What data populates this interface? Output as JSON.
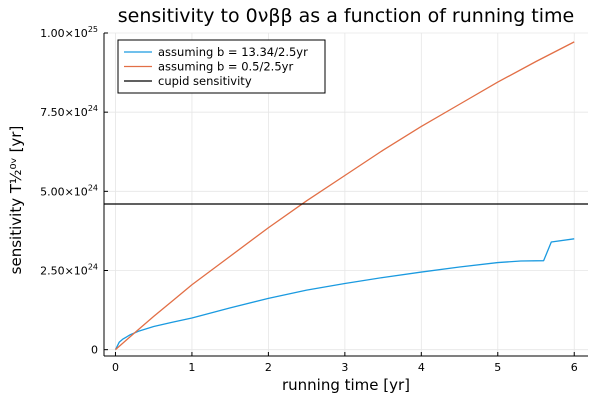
{
  "chart_data": {
    "type": "line",
    "title": "sensitivity to 0νββ as a function of running time",
    "xlabel": "running time [yr]",
    "ylabel": "sensitivity T½⁰ᵛ [yr]",
    "xlim": [
      -0.15,
      6.18
    ],
    "ylim": [
      -2e+23,
      1e+25
    ],
    "x_ticks": [
      0,
      1,
      2,
      3,
      4,
      5,
      6
    ],
    "x_tick_labels": [
      "0",
      "1",
      "2",
      "3",
      "4",
      "5",
      "6"
    ],
    "y_ticks": [
      0,
      2.5e+24,
      5e+24,
      7.5e+24,
      1e+25
    ],
    "y_tick_labels": [
      {
        "mantissa": "0",
        "exp": ""
      },
      {
        "mantissa": "2.50×10",
        "exp": "24"
      },
      {
        "mantissa": "5.00×10",
        "exp": "24"
      },
      {
        "mantissa": "7.50×10",
        "exp": "24"
      },
      {
        "mantissa": "1.00×10",
        "exp": "25"
      }
    ],
    "grid": true,
    "legend_position": "top-left",
    "series": [
      {
        "name": "assuming b = 13.34/2.5yr",
        "color": "#1a9ae0",
        "x": [
          0,
          0.05,
          0.1,
          0.2,
          0.3,
          0.5,
          0.75,
          1.0,
          1.5,
          2.0,
          2.5,
          3.0,
          3.5,
          4.0,
          4.5,
          5.0,
          5.3,
          5.6,
          5.7,
          6.0
        ],
        "y": [
          0,
          2.4e+23,
          3.4e+23,
          4.8e+23,
          5.8e+23,
          7.3e+23,
          8.7e+23,
          1e+24,
          1.32e+24,
          1.62e+24,
          1.88e+24,
          2.09e+24,
          2.28e+24,
          2.45e+24,
          2.61e+24,
          2.75e+24,
          2.8e+24,
          2.81e+24,
          3.4e+24,
          3.5e+24
        ]
      },
      {
        "name": "assuming b = 0.5/2.5yr",
        "color": "#e26f46",
        "x": [
          0,
          0.25,
          0.5,
          0.75,
          1.0,
          1.5,
          2.0,
          2.5,
          3.0,
          3.5,
          4.0,
          4.5,
          5.0,
          5.5,
          6.0
        ],
        "y": [
          0,
          5.3e+23,
          1.05e+24,
          1.55e+24,
          2.05e+24,
          2.95e+24,
          3.85e+24,
          4.7e+24,
          5.5e+24,
          6.3e+24,
          7.05e+24,
          7.75e+24,
          8.45e+24,
          9.1e+24,
          9.72e+24
        ]
      },
      {
        "name": "cupid sensitivity",
        "color": "#000000",
        "horizontal_line": true,
        "y": [
          4.6e+24
        ]
      }
    ]
  }
}
